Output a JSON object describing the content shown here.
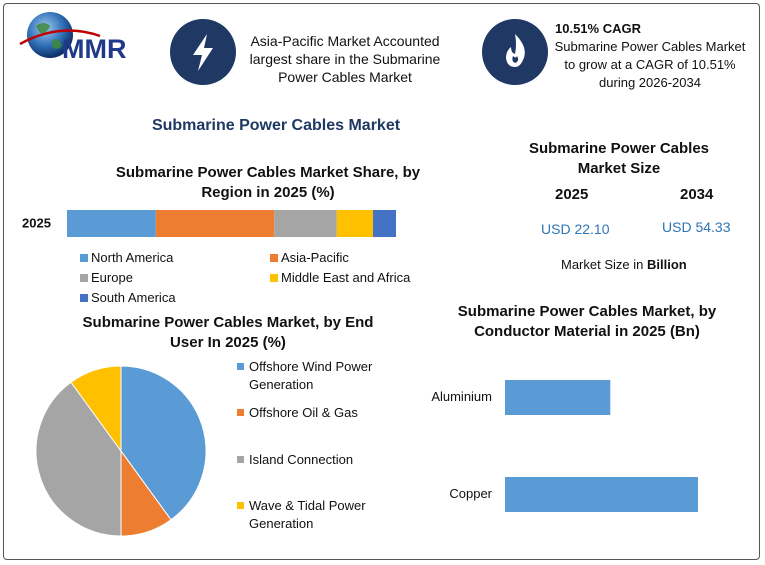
{
  "header": {
    "logo": "MMR",
    "fact": "Asia-Pacific Market Accounted largest share in the Submarine Power Cables Market",
    "cagr_title": "10.51% CAGR",
    "cagr_text": "Submarine Power Cables Market to grow at a CAGR of 10.51%  during 2026-2034"
  },
  "title": "Submarine Power Cables Market",
  "market_size": {
    "title": "Submarine Power Cables Market Size",
    "years": [
      "2025",
      "2034"
    ],
    "values": [
      "USD 22.10",
      "USD 54.33"
    ],
    "note_prefix": "Market Size in",
    "note_unit": "Billion"
  },
  "chart_data": [
    {
      "type": "stacked-bar",
      "title": "Submarine Power Cables Market Share, by Region in 2025 (%)",
      "categories": [
        "2025"
      ],
      "series": [
        {
          "name": "North America",
          "color": "#5b9bd5",
          "values": [
            27
          ]
        },
        {
          "name": "Asia-Pacific",
          "color": "#ed7d31",
          "values": [
            36
          ]
        },
        {
          "name": "Europe",
          "color": "#a5a5a5",
          "values": [
            19
          ]
        },
        {
          "name": "Middle East and Africa",
          "color": "#ffc000",
          "values": [
            11
          ]
        },
        {
          "name": "South America",
          "color": "#4472c4",
          "values": [
            7
          ]
        }
      ]
    },
    {
      "type": "pie",
      "title": "Submarine Power Cables Market, by End User In 2025 (%)",
      "categories": [
        "Offshore Wind Power Generation",
        "Offshore Oil & Gas",
        "Island Connection",
        "Wave & Tidal Power Generation"
      ],
      "values": [
        40,
        10,
        40,
        10
      ],
      "colors": [
        "#5b9bd5",
        "#ed7d31",
        "#a5a5a5",
        "#ffc000"
      ]
    },
    {
      "type": "hbar",
      "title": "Submarine Power Cables Market, by Conductor Material in 2025 (Bn)",
      "categories": [
        "Aluminium",
        "Copper"
      ],
      "values": [
        7.8,
        14.3
      ],
      "color": "#5b9bd5"
    }
  ]
}
